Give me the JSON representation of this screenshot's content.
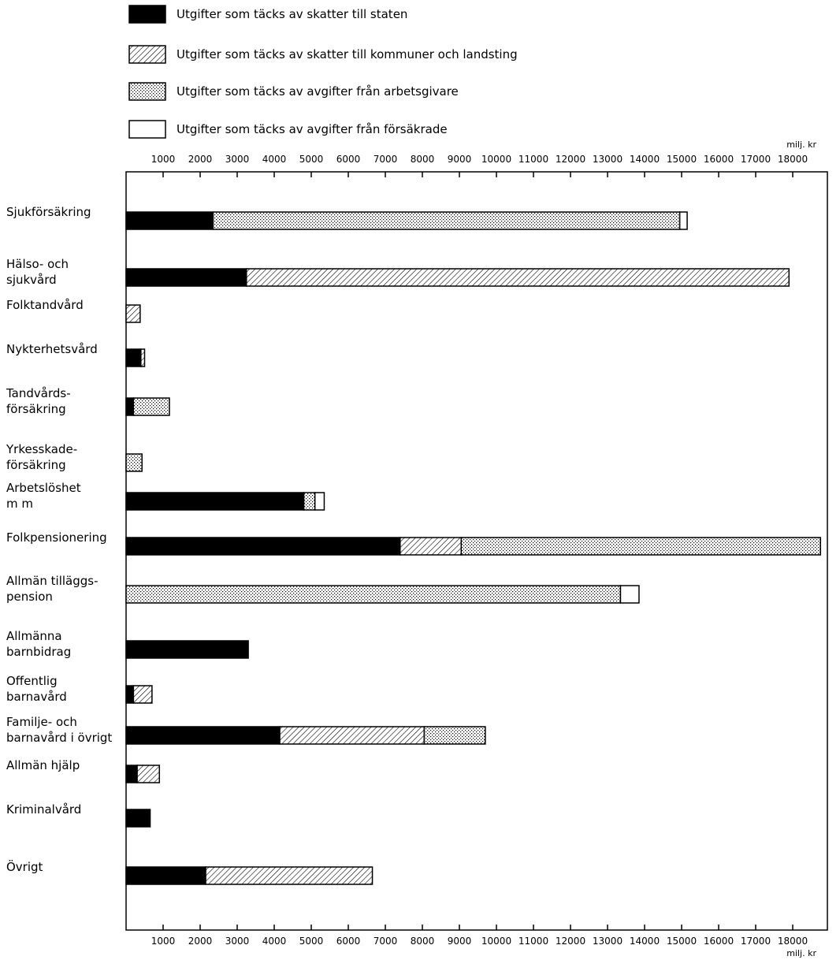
{
  "chart_data": {
    "type": "bar",
    "orientation": "horizontal",
    "stacked": true,
    "unit_label": "milj. kr",
    "xlim": [
      0,
      18800
    ],
    "x_ticks": [
      1000,
      2000,
      3000,
      4000,
      5000,
      6000,
      7000,
      8000,
      9000,
      10000,
      11000,
      12000,
      13000,
      14000,
      15000,
      16000,
      17000,
      18000
    ],
    "grid": false,
    "legend_position": "top",
    "series": [
      {
        "name": "Utgifter som täcks av skatter till staten",
        "pattern": "solid",
        "color": "#000000"
      },
      {
        "name": "Utgifter som täcks av skatter till kommuner och landsting",
        "pattern": "hatched",
        "color": "#ffffff"
      },
      {
        "name": "Utgifter som täcks av avgifter från arbetsgivare",
        "pattern": "dotted",
        "color": "#ffffff"
      },
      {
        "name": "Utgifter som täcks av avgifter från försäkrade",
        "pattern": "plain",
        "color": "#ffffff"
      }
    ],
    "categories": [
      {
        "label": [
          "Sjukförsäkring"
        ],
        "values": [
          2350,
          0,
          12600,
          200
        ]
      },
      {
        "label": [
          "Hälso- och",
          "sjukvård"
        ],
        "values": [
          3250,
          14650,
          0,
          0
        ]
      },
      {
        "label": [
          "Folktandvård"
        ],
        "values": [
          0,
          380,
          0,
          0
        ]
      },
      {
        "label": [
          "Nykterhetsvård"
        ],
        "values": [
          400,
          100,
          0,
          0
        ]
      },
      {
        "label": [
          "Tandvårds-",
          "försäkring"
        ],
        "values": [
          200,
          0,
          970,
          0
        ]
      },
      {
        "label": [
          "Yrkesskade-",
          "försäkring"
        ],
        "values": [
          0,
          0,
          430,
          0
        ]
      },
      {
        "label": [
          "Arbetslöshet",
          "m m"
        ],
        "values": [
          4800,
          0,
          300,
          250
        ]
      },
      {
        "label": [
          "Folkpensionering"
        ],
        "values": [
          7400,
          1650,
          9700,
          0
        ]
      },
      {
        "label": [
          "Allmän tilläggs-",
          "pension"
        ],
        "values": [
          0,
          0,
          13350,
          500
        ]
      },
      {
        "label": [
          "Allmänna",
          "barnbidrag"
        ],
        "values": [
          3300,
          0,
          0,
          0
        ]
      },
      {
        "label": [
          "Offentlig",
          "barnavård"
        ],
        "values": [
          200,
          500,
          0,
          0
        ]
      },
      {
        "label": [
          "Familje- och",
          "barnavård i övrigt"
        ],
        "values": [
          4150,
          3900,
          1650,
          0
        ]
      },
      {
        "label": [
          "Allmän hjälp"
        ],
        "values": [
          300,
          600,
          0,
          0
        ]
      },
      {
        "label": [
          "Kriminalvård"
        ],
        "values": [
          650,
          0,
          0,
          0
        ]
      },
      {
        "label": [
          "Övrigt"
        ],
        "values": [
          2150,
          4500,
          0,
          0
        ]
      }
    ]
  }
}
